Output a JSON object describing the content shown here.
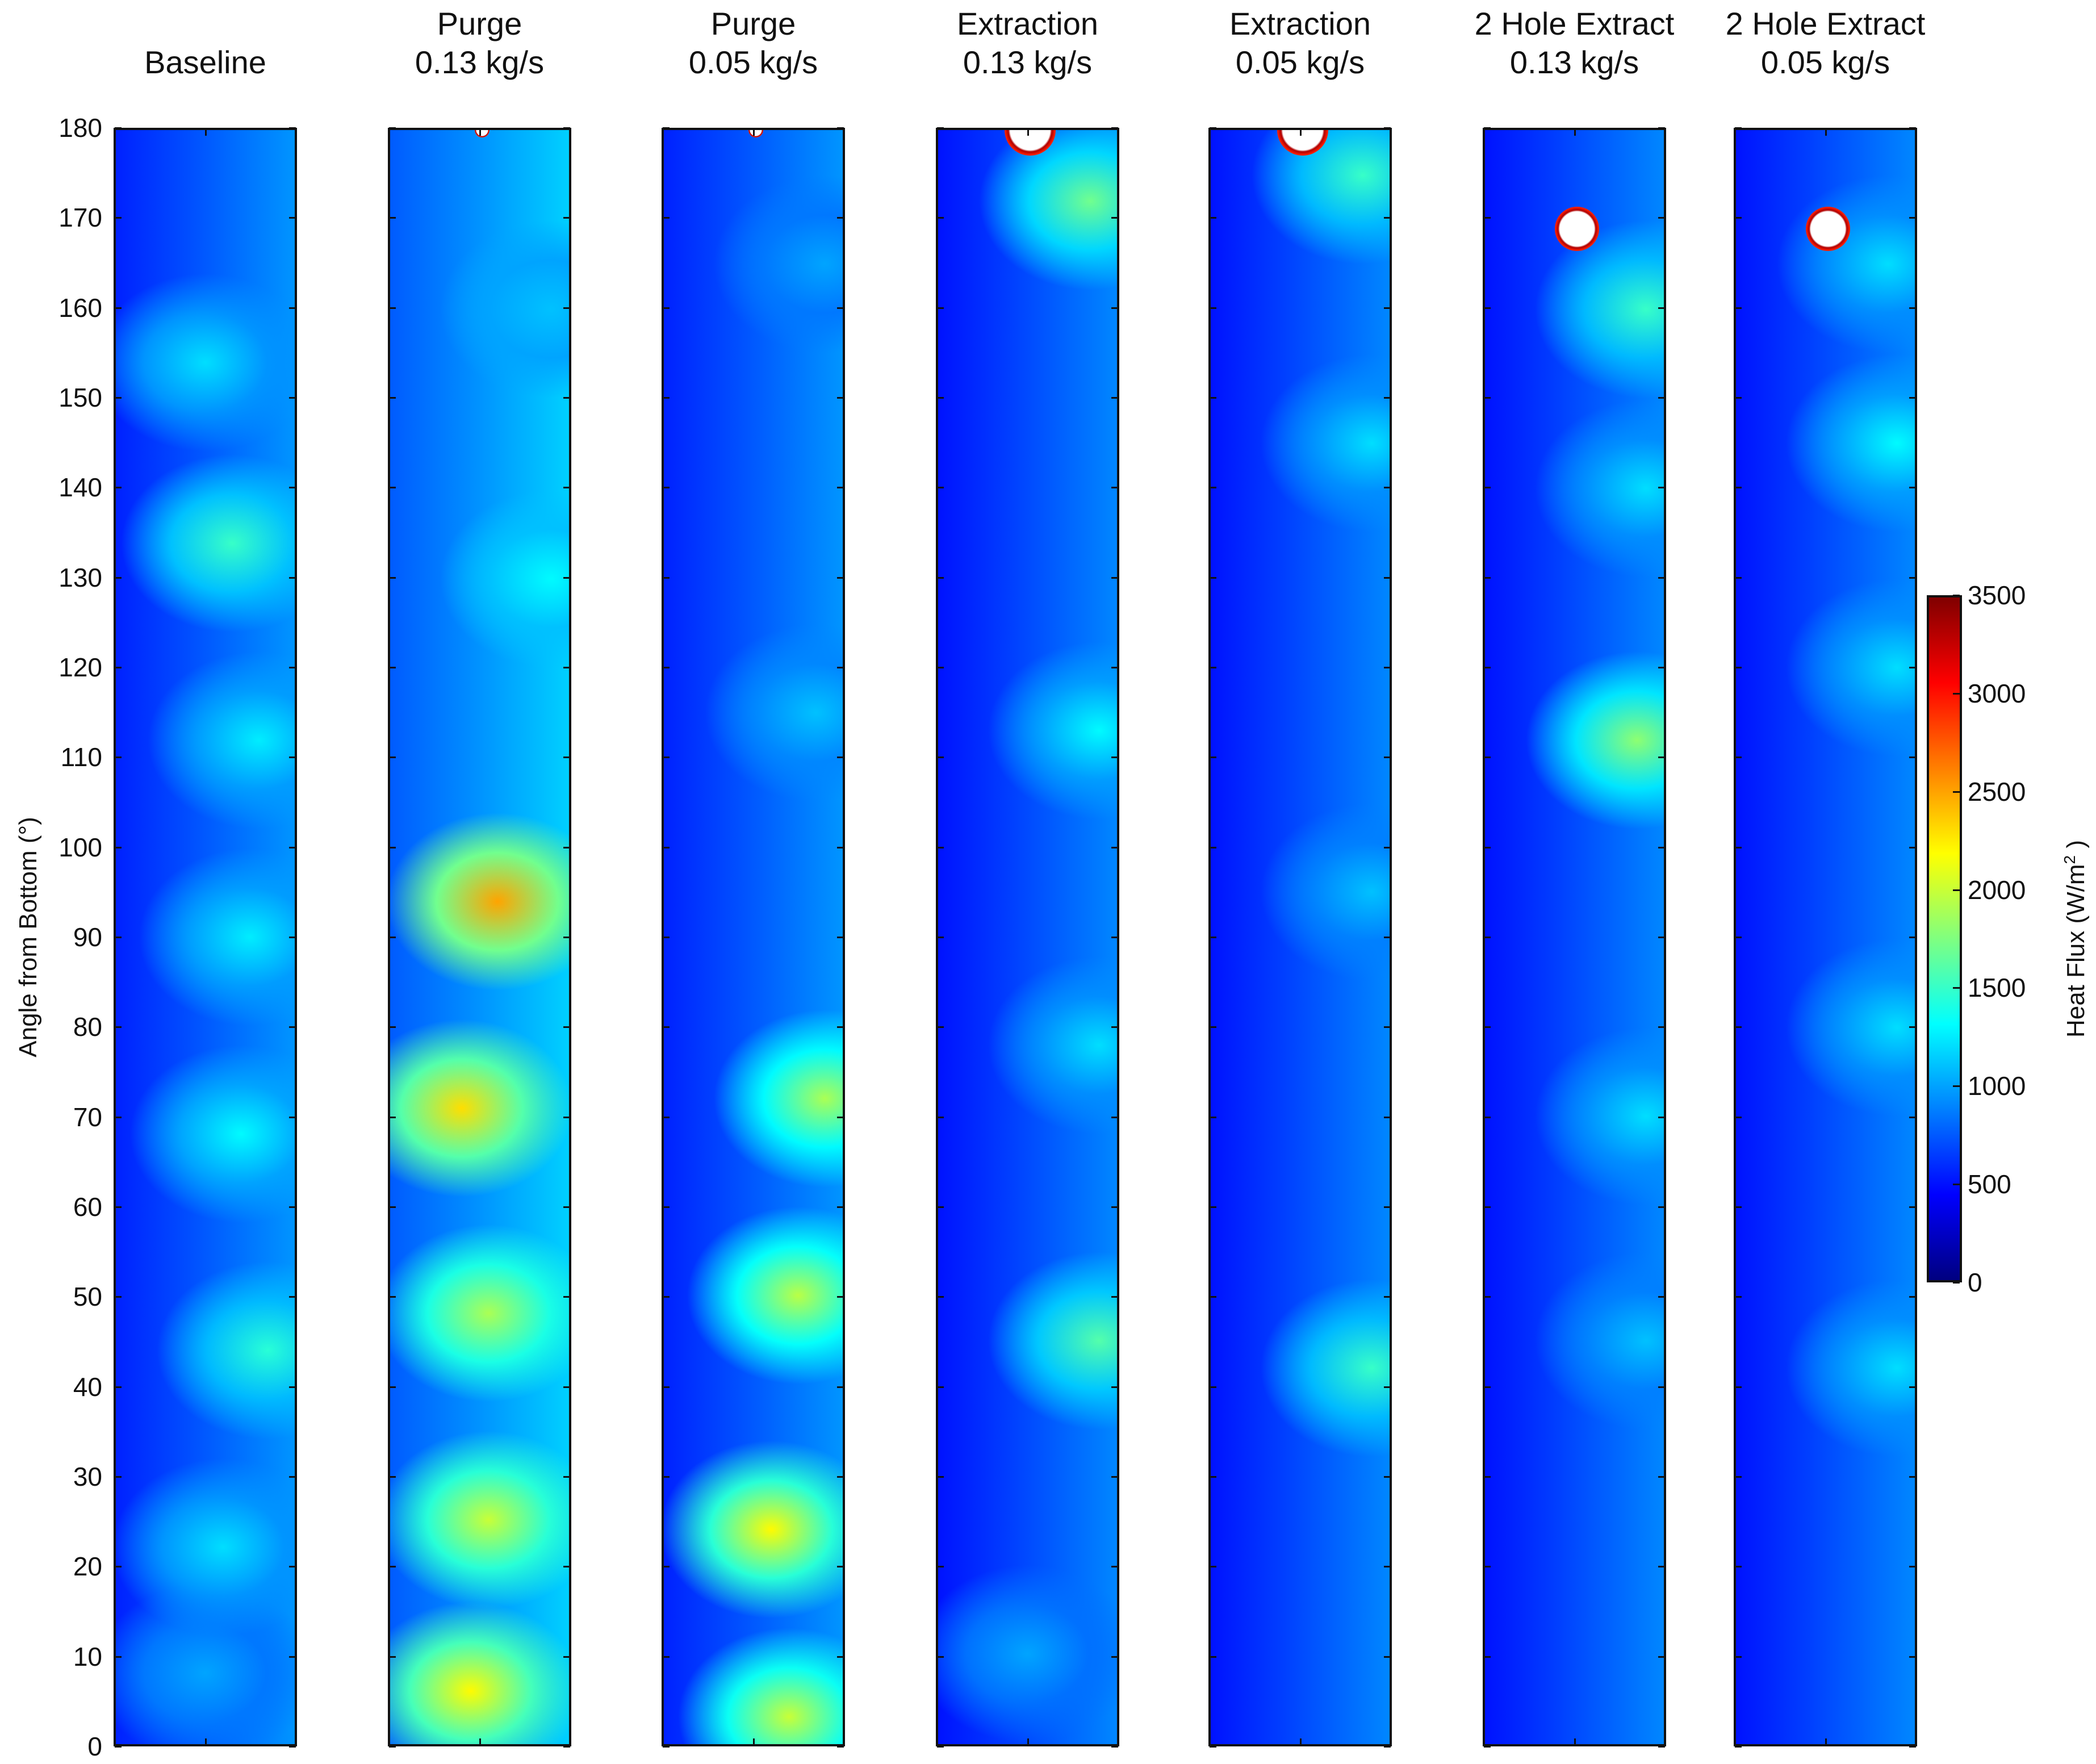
{
  "chart_data": {
    "type": "heatmap",
    "colormap": "jet",
    "ylabel": "Angle from Bottom (°)",
    "ylim": [
      0,
      180
    ],
    "yticks": [
      0,
      10,
      20,
      30,
      40,
      50,
      60,
      70,
      80,
      90,
      100,
      110,
      120,
      130,
      140,
      150,
      160,
      170,
      180
    ],
    "colorbar": {
      "label": "Heat Flux (W/m",
      "label_sup": "2",
      "label_end": " )",
      "range": [
        0,
        3500
      ],
      "ticks": [
        0,
        500,
        1000,
        1500,
        2000,
        2500,
        3000,
        3500
      ]
    },
    "panels": [
      {
        "title": [
          "",
          "Baseline"
        ],
        "base": 700,
        "hole": null,
        "blobs": [
          [
            0.65,
            134,
            1500
          ],
          [
            0.5,
            154,
            1200
          ],
          [
            0.8,
            112,
            1250
          ],
          [
            0.75,
            90,
            1250
          ],
          [
            0.7,
            68,
            1300
          ],
          [
            0.85,
            44,
            1450
          ],
          [
            0.6,
            22,
            1200
          ],
          [
            0.5,
            8,
            1000
          ]
        ]
      },
      {
        "title": [
          "Purge",
          "0.13 kg/s"
        ],
        "base": 900,
        "hole": {
          "x": 0.5,
          "y": 180,
          "value": 3500
        },
        "blobs": [
          [
            0.6,
            94,
            2500
          ],
          [
            0.4,
            71,
            2300
          ],
          [
            0.55,
            48,
            1900
          ],
          [
            0.55,
            25,
            2000
          ],
          [
            0.45,
            6,
            2200
          ],
          [
            0.9,
            130,
            1300
          ],
          [
            0.9,
            160,
            1100
          ]
        ]
      },
      {
        "title": [
          "Purge",
          "0.05 kg/s"
        ],
        "base": 700,
        "hole": {
          "x": 0.5,
          "y": 180,
          "value": 3500
        },
        "blobs": [
          [
            0.9,
            72,
            1900
          ],
          [
            0.75,
            50,
            1950
          ],
          [
            0.6,
            24,
            2200
          ],
          [
            0.7,
            3,
            2000
          ],
          [
            0.9,
            165,
            1000
          ],
          [
            0.85,
            115,
            1100
          ]
        ]
      },
      {
        "title": [
          "Extraction",
          "0.13 kg/s"
        ],
        "base": 650,
        "hole": {
          "x": 0.5,
          "y": 180,
          "value": 3500
        },
        "blobs": [
          [
            0.9,
            45,
            1600
          ],
          [
            0.9,
            113,
            1300
          ],
          [
            0.9,
            78,
            1200
          ],
          [
            0.85,
            172,
            1700
          ],
          [
            0.5,
            10,
            1000
          ]
        ]
      },
      {
        "title": [
          "Extraction",
          "0.05 kg/s"
        ],
        "base": 650,
        "hole": {
          "x": 0.5,
          "y": 180,
          "value": 3500
        },
        "blobs": [
          [
            0.9,
            42,
            1500
          ],
          [
            0.9,
            145,
            1200
          ],
          [
            0.85,
            175,
            1500
          ],
          [
            0.9,
            95,
            1100
          ]
        ]
      },
      {
        "title": [
          "2 Hole Extract",
          "0.13 kg/s"
        ],
        "base": 650,
        "hole": {
          "x": 0.5,
          "y": 169,
          "value": 3500
        },
        "blobs": [
          [
            0.85,
            112,
            1800
          ],
          [
            0.9,
            160,
            1500
          ],
          [
            0.9,
            140,
            1200
          ],
          [
            0.9,
            70,
            1200
          ],
          [
            0.9,
            45,
            1100
          ]
        ]
      },
      {
        "title": [
          "2 Hole Extract",
          "0.05 kg/s"
        ],
        "base": 650,
        "hole": {
          "x": 0.5,
          "y": 169,
          "value": 3500
        },
        "blobs": [
          [
            0.9,
            145,
            1300
          ],
          [
            0.9,
            120,
            1200
          ],
          [
            0.9,
            80,
            1200
          ],
          [
            0.9,
            42,
            1200
          ],
          [
            0.85,
            165,
            1200
          ]
        ]
      }
    ]
  }
}
